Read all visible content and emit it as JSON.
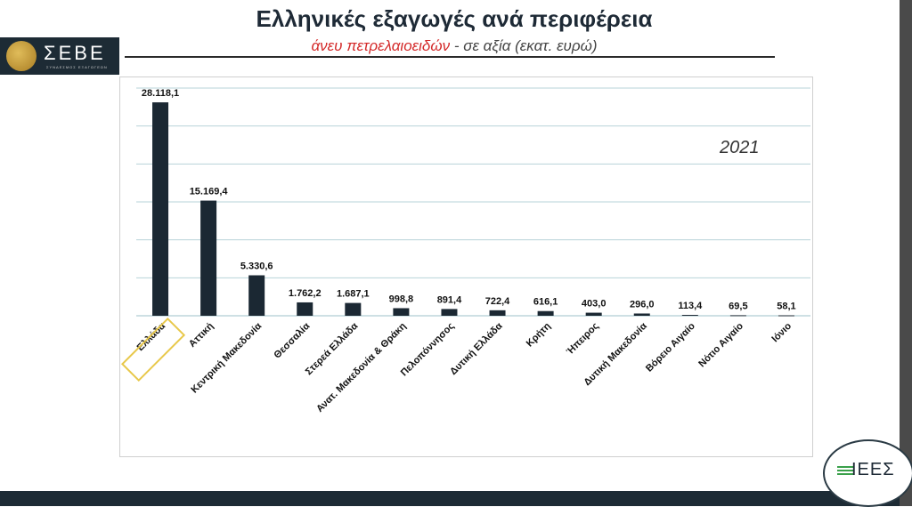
{
  "header": {
    "title": "Ελληνικές εξαγωγές ανά περιφέρεια",
    "subtitle_red": "άνευ πετρελαιοειδών",
    "subtitle_rest": " - σε αξία (εκατ. ευρώ)"
  },
  "logo": {
    "text": "ΣΕΒΕ",
    "subtext": "ΣΥΝΔΕΣΜΟΣ ΕΞΑΓΩΓΕΩΝ"
  },
  "badge": {
    "text": "ΙΕΕΣ"
  },
  "chart_data": {
    "type": "bar",
    "year_label": "2021",
    "categories": [
      "Ελλάδα",
      "Αττική",
      "Κεντρική Μακεδονία",
      "Θεσσαλία",
      "Στερεά Ελλάδα",
      "Ανατ. Μακεδονία & Θράκη",
      "Πελοπόννησος",
      "Δυτική Ελλάδα",
      "Κρήτη",
      "Ήπειρος",
      "Δυτική Μακεδονία",
      "Βόρειο Αιγαίο",
      "Νότιο Αιγαίο",
      "Ιόνιο"
    ],
    "values": [
      28118.1,
      15169.4,
      5330.6,
      1762.2,
      1687.1,
      998.8,
      891.4,
      722.4,
      616.1,
      403.0,
      296.0,
      113.4,
      69.5,
      58.1
    ],
    "value_labels": [
      "28.118,1",
      "15.169,4",
      "5.330,6",
      "1.762,2",
      "1.687,1",
      "998,8",
      "891,4",
      "722,4",
      "616,1",
      "403,0",
      "296,0",
      "113,4",
      "69,5",
      "58,1"
    ],
    "highlighted_category": "Ελλάδα",
    "ylim": [
      0,
      30000
    ],
    "grid": true,
    "bar_color": "#1b2833",
    "highlight_color": "#e8c84a"
  }
}
